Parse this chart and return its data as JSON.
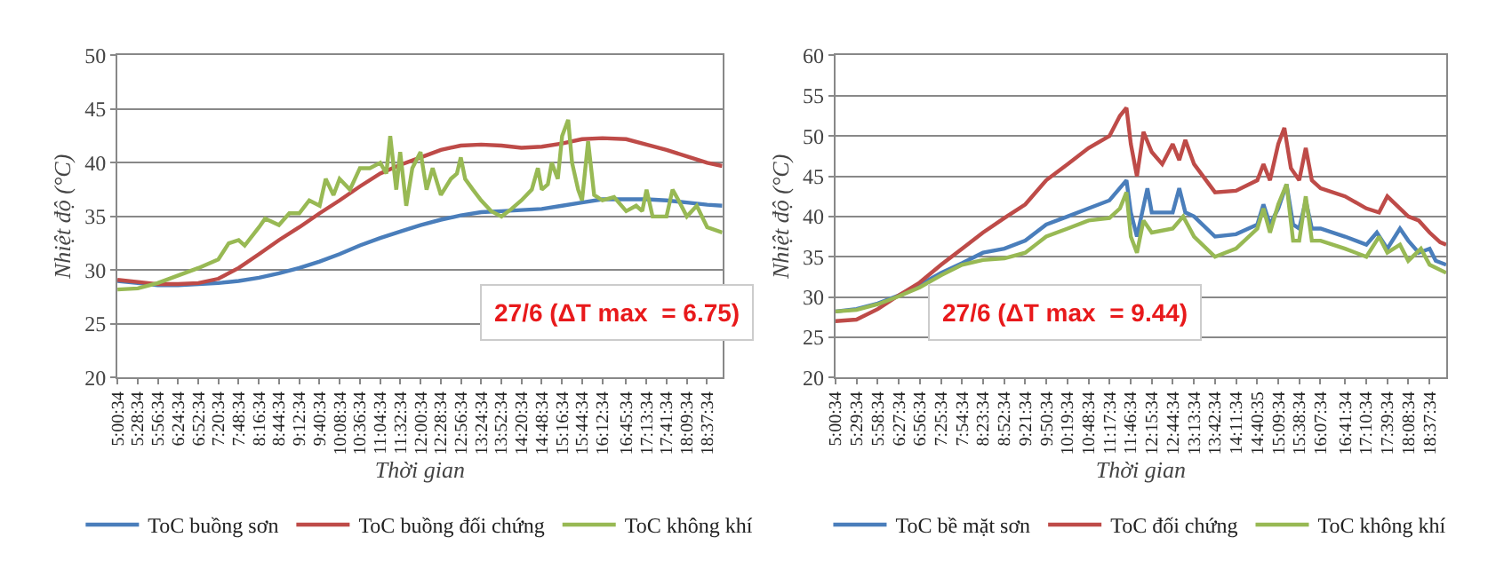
{
  "chart_data": [
    {
      "type": "line",
      "xlabel": "Thời gian",
      "ylabel": "Nhiệt độ (°C)",
      "grid": "y",
      "legend": "bottom",
      "line_style": "solid",
      "xlim": [
        5.0094,
        18.98
      ],
      "ylim": [
        20,
        50
      ],
      "yticks": [
        20,
        25,
        30,
        35,
        40,
        45,
        50
      ],
      "xticks": [
        {
          "value": 5.0094,
          "label": "5:00:34"
        },
        {
          "value": 5.4761,
          "label": "5:28:34"
        },
        {
          "value": 5.9428,
          "label": "5:56:34"
        },
        {
          "value": 6.4094,
          "label": "6:24:34"
        },
        {
          "value": 6.8761,
          "label": "6:52:34"
        },
        {
          "value": 7.3428,
          "label": "7:20:34"
        },
        {
          "value": 7.8094,
          "label": "7:48:34"
        },
        {
          "value": 8.2761,
          "label": "8:16:34"
        },
        {
          "value": 8.7428,
          "label": "8:44:34"
        },
        {
          "value": 9.2094,
          "label": "9:12:34"
        },
        {
          "value": 9.6761,
          "label": "9:40:34"
        },
        {
          "value": 10.1428,
          "label": "10:08:34"
        },
        {
          "value": 10.6094,
          "label": "10:36:34"
        },
        {
          "value": 11.0761,
          "label": "11:04:34"
        },
        {
          "value": 11.5428,
          "label": "11:32:34"
        },
        {
          "value": 12.0094,
          "label": "12:00:34"
        },
        {
          "value": 12.4761,
          "label": "12:28:34"
        },
        {
          "value": 12.9428,
          "label": "12:56:34"
        },
        {
          "value": 13.4094,
          "label": "13:24:34"
        },
        {
          "value": 13.8761,
          "label": "13:52:34"
        },
        {
          "value": 14.3428,
          "label": "14:20:34"
        },
        {
          "value": 14.8094,
          "label": "14:48:34"
        },
        {
          "value": 15.2761,
          "label": "15:16:34"
        },
        {
          "value": 15.7428,
          "label": "15:44:34"
        },
        {
          "value": 16.2094,
          "label": "16:12:34"
        },
        {
          "value": 16.7594,
          "label": "16:45:34"
        },
        {
          "value": 17.2261,
          "label": "17:13:34"
        },
        {
          "value": 17.6928,
          "label": "17:41:34"
        },
        {
          "value": 18.1594,
          "label": "18:09:34"
        },
        {
          "value": 18.6261,
          "label": "18:37:34"
        }
      ],
      "annotations": [
        "27/6 (ΔT max  = 6.75)"
      ],
      "series": [
        {
          "name": "ToC buồng sơn",
          "color": "#4a7ebb",
          "x": [
            5.01,
            5.48,
            5.94,
            6.41,
            6.88,
            7.34,
            7.81,
            8.28,
            8.74,
            9.21,
            9.68,
            10.14,
            10.61,
            11.08,
            11.54,
            12.01,
            12.48,
            12.94,
            13.41,
            13.88,
            14.34,
            14.81,
            15.28,
            15.74,
            16.21,
            16.76,
            17.23,
            17.69,
            18.16,
            18.63,
            18.98
          ],
          "values": [
            29,
            28.8,
            28.6,
            28.6,
            28.7,
            28.8,
            29.0,
            29.3,
            29.7,
            30.2,
            30.8,
            31.5,
            32.3,
            33.0,
            33.6,
            34.2,
            34.7,
            35.1,
            35.4,
            35.5,
            35.6,
            35.7,
            36.0,
            36.3,
            36.6,
            36.6,
            36.6,
            36.5,
            36.3,
            36.1,
            36.0
          ]
        },
        {
          "name": "ToC buồng đối chứng",
          "color": "#be4b48",
          "x": [
            5.01,
            5.48,
            5.94,
            6.41,
            6.88,
            7.34,
            7.81,
            8.28,
            8.74,
            9.21,
            9.68,
            10.14,
            10.61,
            11.08,
            11.54,
            12.01,
            12.48,
            12.94,
            13.41,
            13.88,
            14.34,
            14.81,
            15.28,
            15.74,
            16.21,
            16.76,
            17.23,
            17.69,
            18.16,
            18.63,
            18.98
          ],
          "values": [
            29.1,
            28.9,
            28.7,
            28.7,
            28.8,
            29.2,
            30.2,
            31.5,
            32.8,
            34.0,
            35.3,
            36.5,
            37.8,
            39.0,
            39.8,
            40.5,
            41.2,
            41.6,
            41.7,
            41.6,
            41.4,
            41.5,
            41.8,
            42.2,
            42.3,
            42.2,
            41.7,
            41.2,
            40.6,
            40.0,
            39.7
          ]
        },
        {
          "name": "ToC không khí",
          "color": "#98b954",
          "x": [
            5.01,
            5.48,
            5.94,
            6.41,
            6.88,
            7.34,
            7.58,
            7.81,
            7.95,
            8.28,
            8.42,
            8.74,
            8.98,
            9.21,
            9.44,
            9.68,
            9.82,
            10.0,
            10.14,
            10.38,
            10.61,
            10.84,
            11.08,
            11.22,
            11.31,
            11.45,
            11.54,
            11.68,
            11.82,
            12.01,
            12.15,
            12.29,
            12.48,
            12.71,
            12.85,
            12.94,
            13.04,
            13.22,
            13.41,
            13.64,
            13.88,
            14.11,
            14.34,
            14.58,
            14.72,
            14.81,
            14.95,
            15.04,
            15.18,
            15.28,
            15.42,
            15.51,
            15.65,
            15.74,
            15.88,
            16.02,
            16.21,
            16.48,
            16.76,
            16.99,
            17.13,
            17.23,
            17.37,
            17.69,
            17.83,
            17.97,
            18.16,
            18.39,
            18.63,
            18.98
          ],
          "values": [
            28.2,
            28.3,
            28.8,
            29.5,
            30.2,
            31.0,
            32.5,
            32.8,
            32.3,
            34.0,
            34.8,
            34.2,
            35.3,
            35.3,
            36.5,
            36.0,
            38.5,
            37.0,
            38.5,
            37.5,
            39.5,
            39.5,
            40.0,
            39.0,
            42.5,
            37.5,
            41.0,
            36.0,
            39.5,
            41.0,
            37.5,
            39.5,
            37.0,
            38.5,
            39.0,
            40.5,
            38.5,
            37.5,
            36.5,
            35.5,
            35.0,
            35.7,
            36.5,
            37.5,
            39.5,
            37.5,
            38.0,
            40.0,
            38.5,
            42.5,
            44.0,
            40.0,
            37.5,
            36.5,
            42.0,
            37.0,
            36.5,
            36.8,
            35.5,
            36.0,
            35.5,
            37.5,
            35.0,
            35.0,
            37.5,
            36.5,
            35.0,
            36.0,
            34.0,
            33.5
          ]
        }
      ]
    },
    {
      "type": "line",
      "xlabel": "Thời gian",
      "ylabel": "Nhiệt độ (°C)",
      "grid": "y",
      "legend": "bottom",
      "line_style": "solid",
      "xlim": [
        5.0094,
        19.01
      ],
      "ylim": [
        20,
        60
      ],
      "yticks": [
        20,
        25,
        30,
        35,
        40,
        45,
        50,
        55,
        60
      ],
      "xticks": [
        {
          "value": 5.0094,
          "label": "5:00:34"
        },
        {
          "value": 5.4928,
          "label": "5:29:34"
        },
        {
          "value": 5.9761,
          "label": "5:58:34"
        },
        {
          "value": 6.4594,
          "label": "6:27:34"
        },
        {
          "value": 6.9428,
          "label": "6:56:34"
        },
        {
          "value": 7.4261,
          "label": "7:25:34"
        },
        {
          "value": 7.9094,
          "label": "7:54:34"
        },
        {
          "value": 8.3928,
          "label": "8:23:34"
        },
        {
          "value": 8.8761,
          "label": "8:52:34"
        },
        {
          "value": 9.3594,
          "label": "9:21:34"
        },
        {
          "value": 9.8428,
          "label": "9:50:34"
        },
        {
          "value": 10.3261,
          "label": "10:19:34"
        },
        {
          "value": 10.8094,
          "label": "10:48:34"
        },
        {
          "value": 11.2928,
          "label": "11:17:34"
        },
        {
          "value": 11.7761,
          "label": "11:46:34"
        },
        {
          "value": 12.2594,
          "label": "12:15:34"
        },
        {
          "value": 12.7428,
          "label": "12:44:34"
        },
        {
          "value": 13.2261,
          "label": "13:13:34"
        },
        {
          "value": 13.7094,
          "label": "13:42:34"
        },
        {
          "value": 14.1928,
          "label": "14:11:34"
        },
        {
          "value": 14.6764,
          "label": "14:40:35"
        },
        {
          "value": 15.1594,
          "label": "15:09:34"
        },
        {
          "value": 15.6428,
          "label": "15:38:34"
        },
        {
          "value": 16.1261,
          "label": "16:07:34"
        },
        {
          "value": 16.6928,
          "label": "16:41:34"
        },
        {
          "value": 17.1761,
          "label": "17:10:34"
        },
        {
          "value": 17.6594,
          "label": "17:39:34"
        },
        {
          "value": 18.1428,
          "label": "18:08:34"
        },
        {
          "value": 18.6261,
          "label": "18:37:34"
        }
      ],
      "annotations": [
        "27/6 (ΔT max  = 9.44)"
      ],
      "series": [
        {
          "name": "ToC bề mặt sơn",
          "color": "#4a7ebb",
          "x": [
            5.01,
            5.49,
            5.98,
            6.46,
            6.94,
            7.43,
            7.91,
            8.39,
            8.88,
            9.36,
            9.84,
            10.33,
            10.81,
            11.29,
            11.68,
            11.78,
            11.92,
            12.16,
            12.26,
            12.74,
            12.89,
            13.03,
            13.23,
            13.71,
            14.19,
            14.68,
            14.82,
            14.97,
            15.16,
            15.35,
            15.5,
            15.64,
            15.79,
            15.93,
            16.13,
            16.69,
            17.18,
            17.42,
            17.66,
            17.95,
            18.14,
            18.38,
            18.63,
            18.77,
            19.01
          ],
          "values": [
            28.2,
            28.5,
            29.2,
            30.2,
            31.5,
            33.0,
            34.2,
            35.5,
            36.0,
            37.0,
            39.0,
            40.0,
            41.0,
            42.0,
            44.5,
            40.5,
            37.5,
            43.5,
            40.5,
            40.5,
            43.5,
            40.5,
            40.0,
            37.5,
            37.8,
            39.0,
            41.5,
            39.0,
            41.0,
            44.0,
            39.0,
            38.5,
            42.0,
            38.5,
            38.5,
            37.5,
            36.5,
            38.0,
            36.0,
            38.5,
            37.0,
            35.5,
            36.0,
            34.5,
            34.0
          ]
        },
        {
          "name": "ToC đối chứng",
          "color": "#be4b48",
          "x": [
            5.01,
            5.49,
            5.98,
            6.46,
            6.94,
            7.43,
            7.91,
            8.39,
            8.88,
            9.36,
            9.84,
            10.33,
            10.81,
            11.29,
            11.53,
            11.68,
            11.78,
            11.92,
            12.07,
            12.26,
            12.5,
            12.74,
            12.89,
            13.03,
            13.23,
            13.71,
            14.19,
            14.68,
            14.82,
            14.97,
            15.16,
            15.3,
            15.45,
            15.64,
            15.79,
            15.93,
            16.13,
            16.69,
            17.18,
            17.47,
            17.66,
            18.14,
            18.38,
            18.63,
            18.87,
            19.01
          ],
          "values": [
            27,
            27.2,
            28.5,
            30.2,
            31.8,
            34.0,
            36.0,
            38.0,
            39.8,
            41.5,
            44.5,
            46.5,
            48.5,
            50.0,
            52.5,
            53.5,
            49.0,
            45.0,
            50.5,
            48.0,
            46.5,
            49.0,
            47.0,
            49.5,
            46.5,
            43.0,
            43.2,
            44.5,
            46.5,
            44.5,
            49.0,
            51.0,
            46.0,
            44.5,
            48.5,
            44.5,
            43.5,
            42.5,
            41.0,
            40.5,
            42.5,
            40.0,
            39.5,
            38.0,
            36.8,
            36.5
          ]
        },
        {
          "name": "ToC không khí",
          "color": "#98b954",
          "x": [
            5.01,
            5.49,
            5.98,
            6.46,
            6.94,
            7.43,
            7.91,
            8.39,
            8.88,
            9.36,
            9.6,
            9.84,
            10.33,
            10.81,
            11.29,
            11.53,
            11.68,
            11.78,
            11.92,
            12.07,
            12.26,
            12.74,
            12.98,
            13.23,
            13.71,
            14.19,
            14.68,
            14.82,
            14.97,
            15.16,
            15.35,
            15.5,
            15.64,
            15.79,
            15.93,
            16.13,
            16.69,
            17.18,
            17.47,
            17.66,
            17.95,
            18.14,
            18.43,
            18.63,
            19.01
          ],
          "values": [
            28.2,
            28.4,
            29.1,
            30.1,
            31.2,
            32.7,
            34.0,
            34.6,
            34.8,
            35.5,
            36.5,
            37.5,
            38.5,
            39.5,
            39.8,
            41.0,
            43.0,
            37.5,
            35.5,
            39.5,
            38.0,
            38.5,
            40.0,
            37.5,
            35.0,
            36.0,
            38.5,
            41.0,
            38.0,
            41.5,
            44.0,
            37.0,
            37.0,
            42.5,
            37.0,
            37.0,
            36.0,
            35.0,
            37.5,
            35.5,
            36.5,
            34.5,
            36.0,
            34.0,
            33.0
          ]
        }
      ]
    }
  ]
}
